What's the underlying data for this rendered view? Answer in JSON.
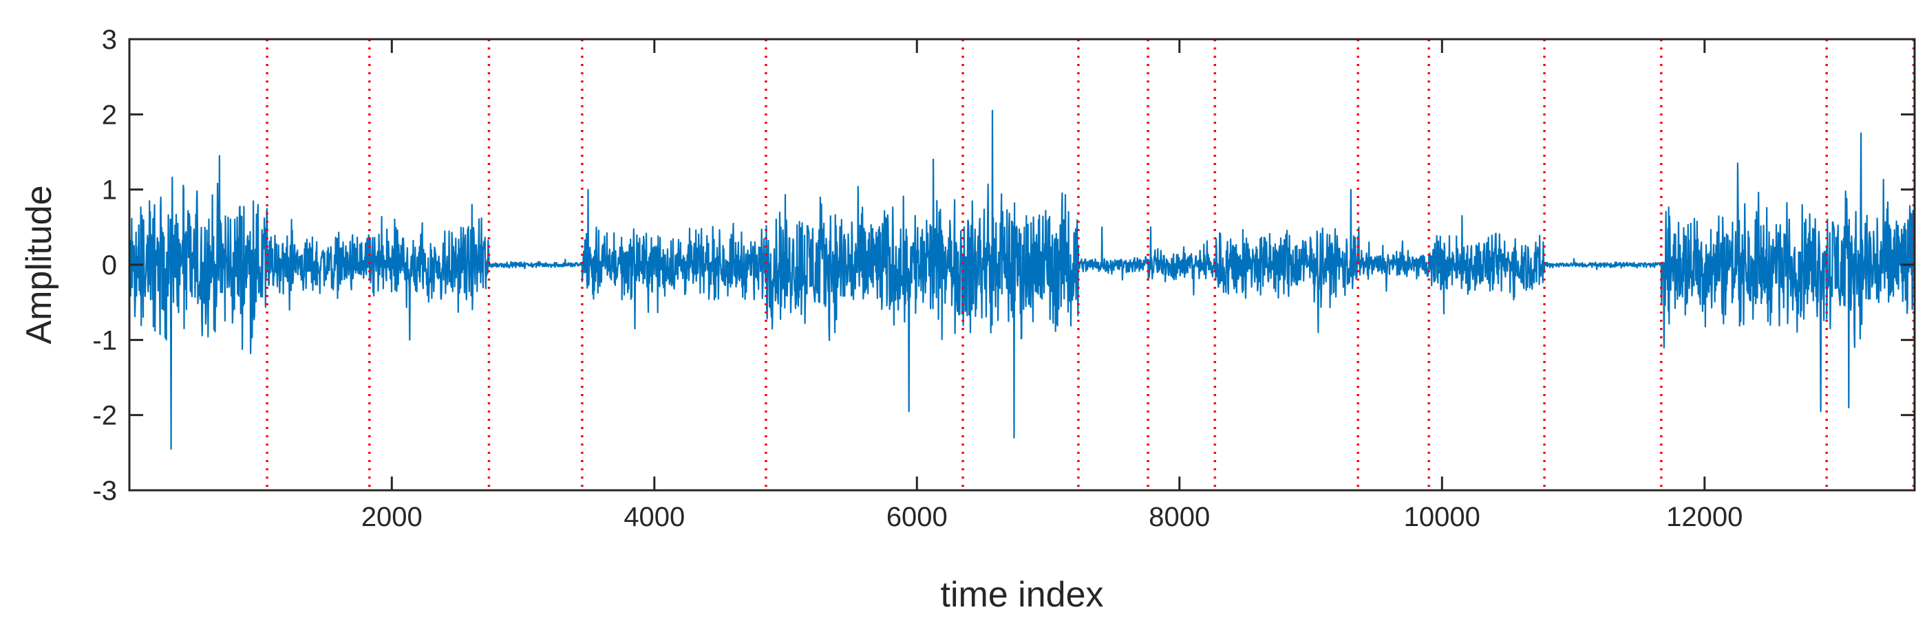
{
  "chart_data": {
    "type": "line",
    "title": "",
    "xlabel": "time index",
    "ylabel": "Amplitude",
    "xlim": [
      1,
      13600
    ],
    "ylim": [
      -3,
      3
    ],
    "xticks": [
      2000,
      4000,
      6000,
      8000,
      10000,
      12000
    ],
    "xtick_labels": [
      "2000",
      "4000",
      "6000",
      "8000",
      "10000",
      "12000"
    ],
    "yticks": [
      -3,
      -2,
      -1,
      0,
      1,
      2,
      3
    ],
    "ytick_labels": [
      "-3",
      "-2",
      "-1",
      "0",
      "1",
      "2",
      "3"
    ],
    "grid": false,
    "legend": "none",
    "colors": {
      "signal": "#0072BD",
      "boundary": "#FF0000",
      "axes": "#262626"
    },
    "series": [
      {
        "style": "solid",
        "description": "noisy signal; approximate envelope (peak amplitude) per segment",
        "segments": [
          {
            "x_start": 1,
            "x_end": 1050,
            "amplitude": 1.3,
            "max": 1.45,
            "min": -2.45
          },
          {
            "x_start": 1050,
            "x_end": 1830,
            "amplitude": 0.55,
            "max": 0.6,
            "min": -0.6
          },
          {
            "x_start": 1830,
            "x_end": 2740,
            "amplitude": 0.75,
            "max": 0.8,
            "min": -1.0
          },
          {
            "x_start": 2740,
            "x_end": 3450,
            "amplitude": 0.05,
            "max": 0.07,
            "min": -0.05
          },
          {
            "x_start": 3450,
            "x_end": 4850,
            "amplitude": 0.6,
            "max": 1.0,
            "min": -0.85
          },
          {
            "x_start": 4850,
            "x_end": 6350,
            "amplitude": 1.1,
            "max": 1.4,
            "min": -1.95
          },
          {
            "x_start": 6350,
            "x_end": 7230,
            "amplitude": 1.2,
            "max": 2.05,
            "min": -2.3
          },
          {
            "x_start": 7230,
            "x_end": 7760,
            "amplitude": 0.15,
            "max": 0.5,
            "min": -0.2
          },
          {
            "x_start": 7760,
            "x_end": 8270,
            "amplitude": 0.3,
            "max": 0.5,
            "min": -0.4
          },
          {
            "x_start": 8270,
            "x_end": 9360,
            "amplitude": 0.65,
            "max": 1.0,
            "min": -0.9
          },
          {
            "x_start": 9360,
            "x_end": 9900,
            "amplitude": 0.25,
            "max": 0.5,
            "min": -0.35
          },
          {
            "x_start": 9900,
            "x_end": 10780,
            "amplitude": 0.55,
            "max": 0.65,
            "min": -0.65
          },
          {
            "x_start": 10780,
            "x_end": 11670,
            "amplitude": 0.05,
            "max": 0.08,
            "min": -0.06
          },
          {
            "x_start": 11670,
            "x_end": 12930,
            "amplitude": 1.05,
            "max": 1.35,
            "min": -1.95
          },
          {
            "x_start": 12930,
            "x_end": 13600,
            "amplitude": 1.2,
            "max": 1.75,
            "min": -1.9
          }
        ]
      },
      {
        "style": "dotted",
        "description": "vertical boundary lines (red, dotted)",
        "x": [
          1050,
          1830,
          2740,
          3450,
          4850,
          6350,
          7230,
          7760,
          8270,
          9360,
          9900,
          10780,
          11670,
          12930,
          13600
        ]
      }
    ]
  }
}
